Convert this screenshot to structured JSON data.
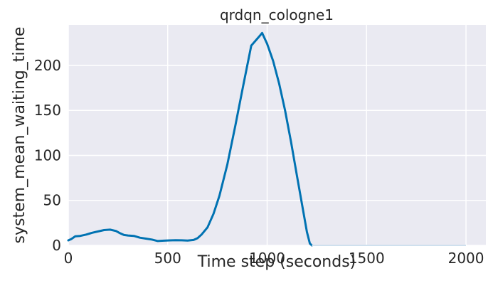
{
  "chart_data": {
    "type": "line",
    "title": "qrdqn_cologne1",
    "xlabel": "Time step (seconds)",
    "ylabel": "system_mean_waiting_time",
    "xlim": [
      0,
      2100
    ],
    "ylim": [
      0,
      245
    ],
    "xticks": [
      0,
      500,
      1000,
      1500,
      2000
    ],
    "yticks": [
      0,
      50,
      100,
      150,
      200
    ],
    "grid": true,
    "colors": {
      "background": "#eaeaf2",
      "grid": "#ffffff",
      "line": "#0072b2"
    },
    "series": [
      {
        "x": [
          0,
          15,
          35,
          60,
          90,
          120,
          150,
          180,
          210,
          240,
          260,
          280,
          300,
          330,
          360,
          390,
          420,
          450,
          480,
          510,
          540,
          570,
          600,
          630,
          650,
          670,
          700,
          730,
          760,
          800,
          840,
          880,
          920,
          960,
          975,
          1000,
          1030,
          1060,
          1090,
          1120,
          1150,
          1180,
          1200,
          1215,
          1225,
          1500,
          2000
        ],
        "y": [
          5.5,
          7,
          10,
          10.5,
          12,
          14,
          15.5,
          17,
          17.5,
          16,
          13.5,
          11.5,
          11,
          10.5,
          8.5,
          7.5,
          6.5,
          4.8,
          5.2,
          5.5,
          5.8,
          5.6,
          5.4,
          6,
          8,
          12,
          20,
          35,
          55,
          90,
          133,
          178,
          222,
          232,
          236,
          224,
          205,
          180,
          150,
          115,
          77,
          40,
          15,
          2,
          0,
          0,
          0
        ]
      }
    ]
  }
}
